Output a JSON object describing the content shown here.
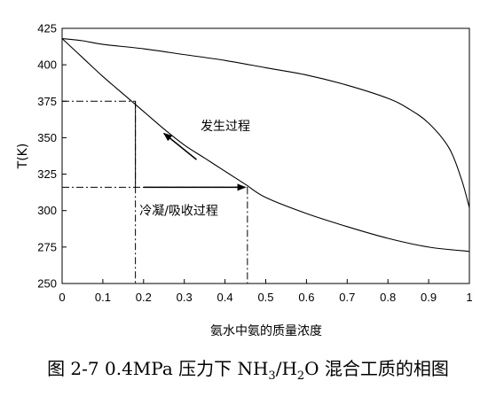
{
  "chart_data": {
    "type": "line",
    "xlabel": "氨水中氨的质量浓度",
    "ylabel": "T(K)",
    "xlim": [
      0,
      1
    ],
    "ylim": [
      250,
      425
    ],
    "x_ticks": [
      "0",
      "0.1",
      "0.2",
      "0.3",
      "0.4",
      "0.5",
      "0.6",
      "0.7",
      "0.8",
      "0.9",
      "1"
    ],
    "y_ticks": [
      "250",
      "275",
      "300",
      "325",
      "350",
      "375",
      "400",
      "425"
    ],
    "grid": false,
    "legend": "none",
    "series": [
      {
        "points": [
          [
            0,
            418
          ],
          [
            0.05,
            416.5
          ],
          [
            0.1,
            414
          ],
          [
            0.2,
            411
          ],
          [
            0.3,
            407
          ],
          [
            0.4,
            403
          ],
          [
            0.5,
            398
          ],
          [
            0.6,
            393
          ],
          [
            0.7,
            386
          ],
          [
            0.8,
            377
          ],
          [
            0.85,
            370
          ],
          [
            0.9,
            360
          ],
          [
            0.95,
            343
          ],
          [
            0.98,
            322
          ],
          [
            1.0,
            302
          ]
        ]
      },
      {
        "points": [
          [
            0,
            418
          ],
          [
            0.05,
            405
          ],
          [
            0.1,
            392
          ],
          [
            0.15,
            380
          ],
          [
            0.2,
            368
          ],
          [
            0.25,
            356
          ],
          [
            0.3,
            345
          ],
          [
            0.35,
            336
          ],
          [
            0.4,
            327
          ],
          [
            0.45,
            318
          ],
          [
            0.5,
            309
          ],
          [
            0.6,
            298
          ],
          [
            0.7,
            289
          ],
          [
            0.8,
            281
          ],
          [
            0.9,
            275
          ],
          [
            1.0,
            272
          ]
        ]
      }
    ],
    "dash_dot_lines": [
      {
        "x": [
          0,
          0.18
        ],
        "y": [
          375,
          375
        ]
      },
      {
        "x": [
          0.18,
          0.18
        ],
        "y": [
          375,
          250
        ]
      },
      {
        "x": [
          0,
          0.455
        ],
        "y": [
          316,
          316
        ]
      },
      {
        "x": [
          0.455,
          0.455
        ],
        "y": [
          316,
          250
        ]
      }
    ],
    "solid_lines": [
      {
        "x": [
          0.18,
          0.18
        ],
        "y": [
          375,
          316
        ]
      }
    ],
    "arrows": [
      {
        "x": [
          0.33,
          0.25
        ],
        "y": [
          335,
          353
        ]
      },
      {
        "x": [
          0.2,
          0.45
        ],
        "y": [
          316,
          316
        ]
      }
    ],
    "annotations": [
      {
        "text": "发生过程",
        "x": 0.34,
        "y": 355
      },
      {
        "text": "冷凝/吸收过程",
        "x": 0.19,
        "y": 297
      }
    ]
  },
  "caption": {
    "prefix": "图 2-7 0.4MPa 压力下 NH",
    "sub1": "3",
    "mid": "/H",
    "sub2": "2",
    "suffix": "O 混合工质的相图"
  }
}
